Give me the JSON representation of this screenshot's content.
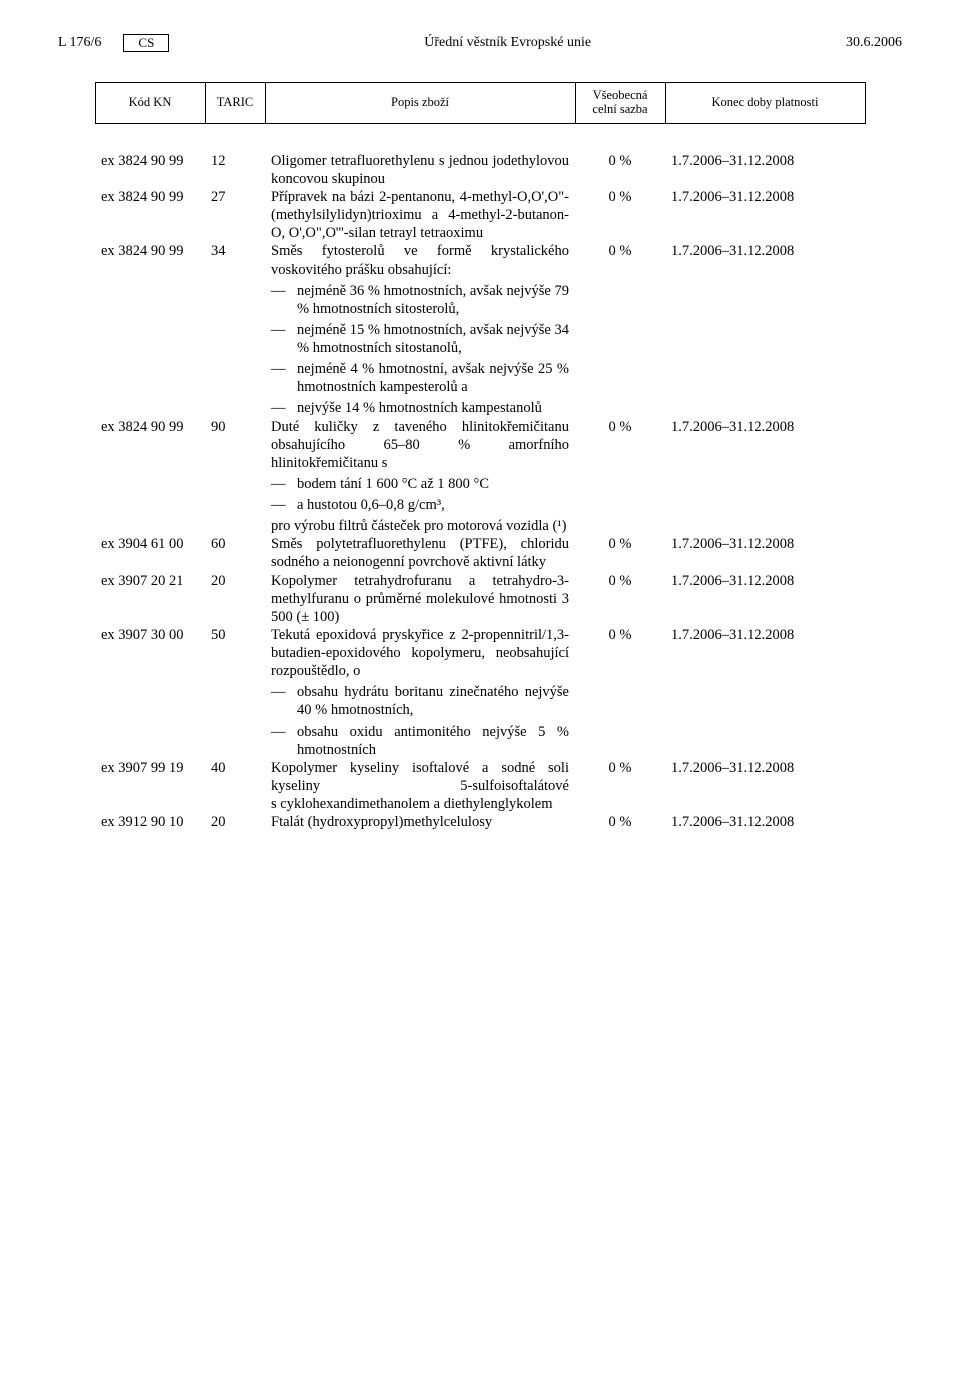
{
  "header": {
    "page_ref": "L 176/6",
    "lang": "CS",
    "journal": "Úřední věstník Evropské unie",
    "date": "30.6.2006"
  },
  "columns": {
    "kn": "Kód KN",
    "taric": "TARIC",
    "desc": "Popis zboží",
    "rate": "Všeobecná\ncelní sazba",
    "period": "Konec doby platnosti"
  },
  "rows": [
    {
      "kn": "ex 3824 90 99",
      "taric": "12",
      "desc_main": "Oligomer tetrafluorethylenu s jednou jodethylovou koncovou skupinou",
      "rate": "0 %",
      "period": "1.7.2006–31.12.2008"
    },
    {
      "kn": "ex 3824 90 99",
      "taric": "27",
      "desc_main": "Přípravek na bázi 2-pentanonu, 4-methyl-O,O',O\"-(methylsilylidyn)trioximu a 4-methyl-2-butanon-O, O',O\",O'''-silan tetrayl tetraoximu",
      "rate": "0 %",
      "period": "1.7.2006–31.12.2008"
    },
    {
      "kn": "ex 3824 90 99",
      "taric": "34",
      "desc_main": "Směs fytosterolů ve formě krystalického voskovitého prášku obsahující:",
      "bullets": [
        "nejméně 36 % hmotnostních, avšak nejvýše 79 % hmotnostních sitosterolů,",
        "nejméně 15 % hmotnostních, avšak nejvýše 34 % hmotnostních sitostanolů,",
        "nejméně 4 % hmotnostní, avšak nejvýše 25 % hmotnostních kampesterolů a",
        "nejvýše 14 % hmotnostních kampestanolů"
      ],
      "rate": "0 %",
      "period": "1.7.2006–31.12.2008"
    },
    {
      "kn": "ex 3824 90 99",
      "taric": "90",
      "desc_main": "Duté kuličky z taveného hlinitokřemičitanu obsahujícího 65–80 % amorfního hlinitokřemičitanu s",
      "bullets": [
        "bodem tání 1 600 °C až 1 800 °C",
        "a hustotou 0,6–0,8 g/cm³,"
      ],
      "desc_tail": "pro výrobu filtrů částeček pro motorová vozidla (¹)",
      "rate": "0 %",
      "period": "1.7.2006–31.12.2008"
    },
    {
      "kn": "ex 3904 61 00",
      "taric": "60",
      "desc_main": "Směs polytetrafluorethylenu (PTFE), chloridu sodného a neionogenní povrchově aktivní látky",
      "rate": "0 %",
      "period": "1.7.2006–31.12.2008"
    },
    {
      "kn": "ex 3907 20 21",
      "taric": "20",
      "desc_main": "Kopolymer tetrahydrofuranu a tetrahydro-3-methylfuranu o průměrné molekulové hmotnosti 3 500 (± 100)",
      "rate": "0 %",
      "period": "1.7.2006–31.12.2008"
    },
    {
      "kn": "ex 3907 30 00",
      "taric": "50",
      "desc_main": "Tekutá epoxidová pryskyřice z 2-propennitril/1,3-butadien-epoxidového kopolymeru, neobsahující rozpouštědlo, o",
      "bullets": [
        "obsahu hydrátu boritanu zinečnatého nejvýše 40 % hmotnostních,",
        "obsahu oxidu antimonitého nejvýše 5 % hmotnostních"
      ],
      "rate": "0 %",
      "period": "1.7.2006–31.12.2008"
    },
    {
      "kn": "ex 3907 99 19",
      "taric": "40",
      "desc_main": "Kopolymer kyseliny isoftalové a sodné soli kyseliny 5-sulfoisoftalátové s cyklohexandimethanolem a diethylenglykolem",
      "rate": "0 %",
      "period": "1.7.2006–31.12.2008"
    },
    {
      "kn": "ex 3912 90 10",
      "taric": "20",
      "desc_main": "Ftalát (hydroxypropyl)methylcelulosy",
      "rate": "0 %",
      "period": "1.7.2006–31.12.2008"
    }
  ]
}
